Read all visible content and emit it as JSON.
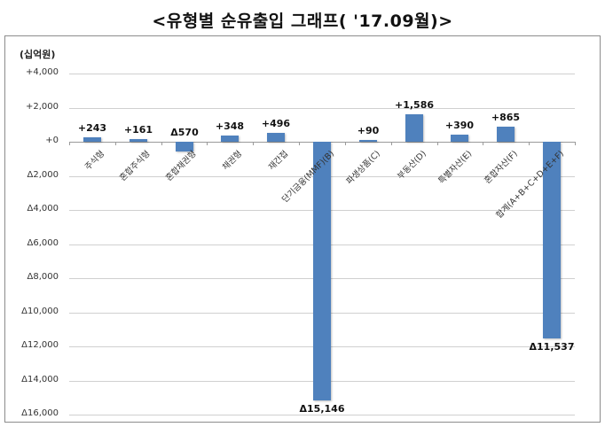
{
  "title": "<유형별 순유출입 그래프( '17.09월)>",
  "unit_label": "(십억원)",
  "colors": {
    "bar": "#4f81bd",
    "grid": "#d0d0d0",
    "frame": "#8c8c8c"
  },
  "y_ticks": [
    "+4,000",
    "+2,000",
    "+0",
    "Δ2,000",
    "Δ4,000",
    "Δ6,000",
    "Δ8,000",
    "Δ10,000",
    "Δ12,000",
    "Δ14,000",
    "Δ16,000"
  ],
  "chart_data": {
    "type": "bar",
    "title": "<유형별 순유출입 그래프( '17.09월)>",
    "xlabel": "",
    "ylabel": "(십억원)",
    "ylim": [
      -16000,
      4000
    ],
    "grid": true,
    "legend": null,
    "categories": [
      "주식형",
      "혼합주식형",
      "혼합채권형",
      "채권형",
      "재간접",
      "단기금융(MMF)(B)",
      "파생상품(C)",
      "부동산(D)",
      "특별자산(E)",
      "혼합자산(F)",
      "합계(A+B+C+D+E+F)"
    ],
    "values": [
      243,
      161,
      -570,
      348,
      496,
      -15146,
      90,
      1586,
      390,
      865,
      -11537
    ],
    "data_labels": [
      "+243",
      "+161",
      "Δ570",
      "+348",
      "+496",
      "Δ15,146",
      "+90",
      "+1,586",
      "+390",
      "+865",
      "Δ11,537"
    ]
  }
}
